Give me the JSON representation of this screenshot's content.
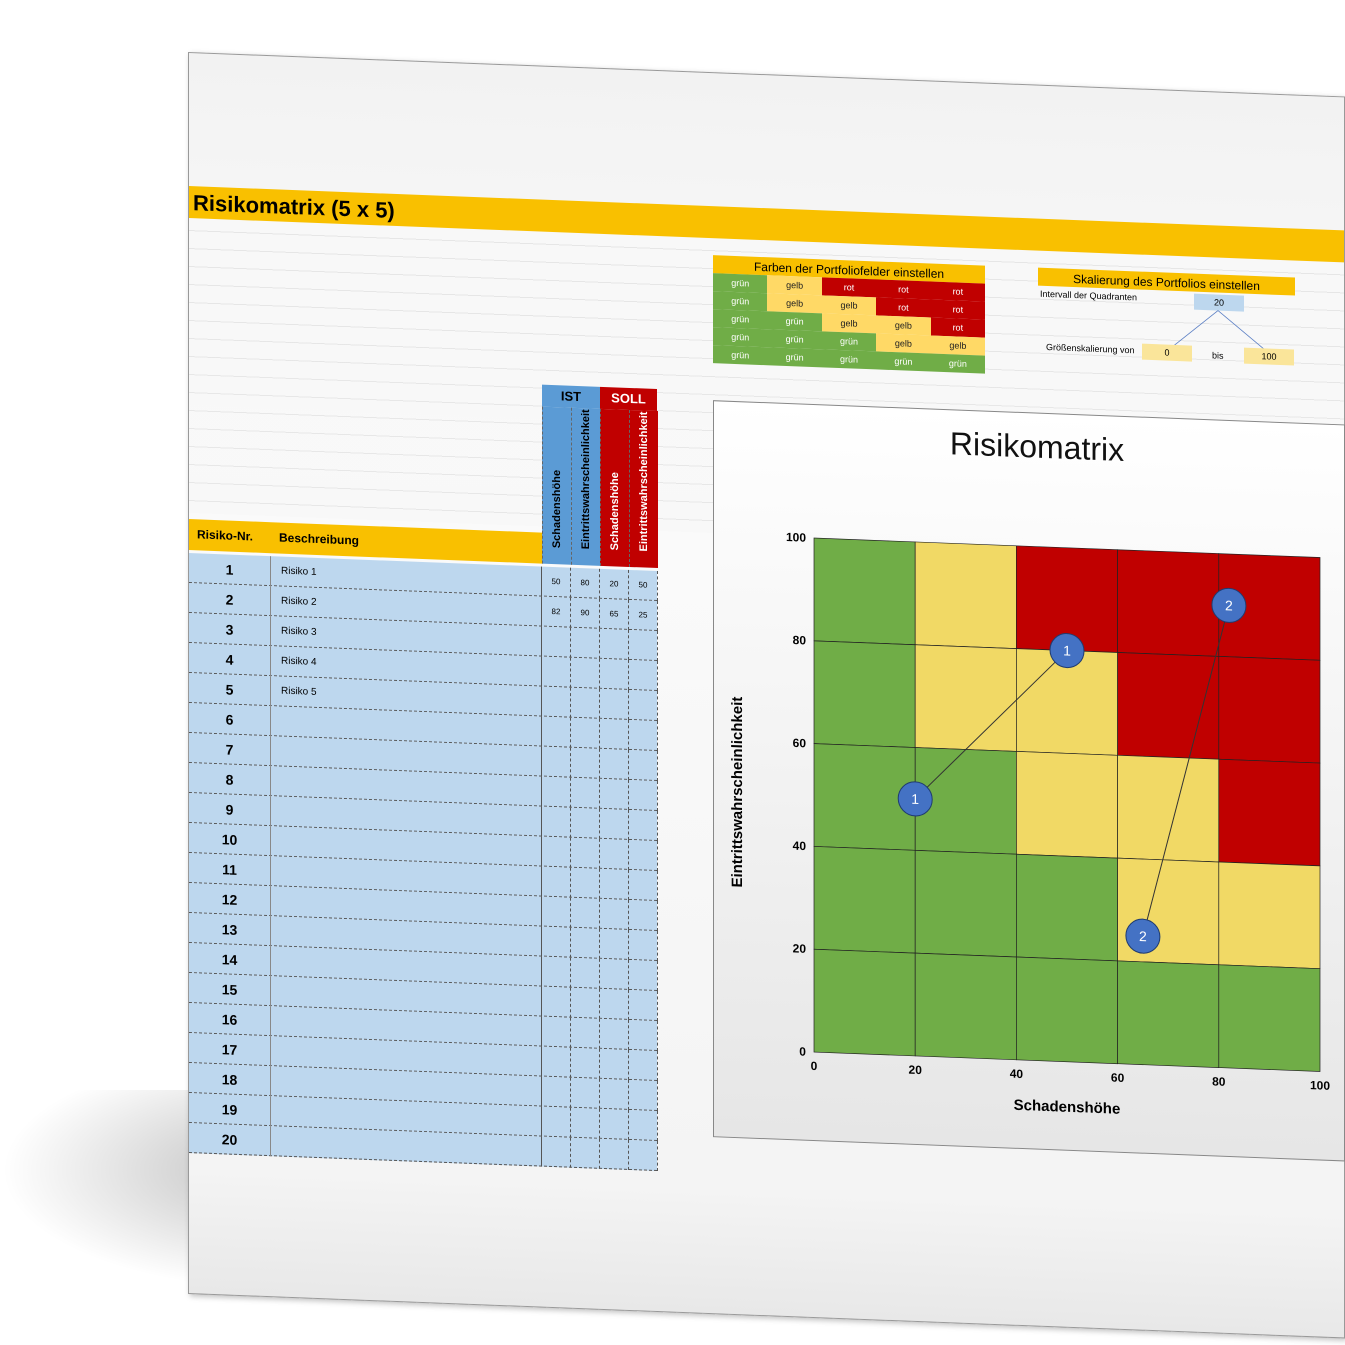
{
  "title": "Risikomatrix (5 x 5)",
  "color_table": {
    "title": "Farben der Portfoliofelder einstellen",
    "rows": [
      [
        "grün",
        "gelb",
        "rot",
        "rot",
        "rot"
      ],
      [
        "grün",
        "gelb",
        "gelb",
        "rot",
        "rot"
      ],
      [
        "grün",
        "grün",
        "gelb",
        "gelb",
        "rot"
      ],
      [
        "grün",
        "grün",
        "grün",
        "gelb",
        "gelb"
      ],
      [
        "grün",
        "grün",
        "grün",
        "grün",
        "grün"
      ]
    ]
  },
  "scale_table": {
    "title": "Skalierung des Portfolios einstellen",
    "interval_label": "Intervall der Quadranten",
    "interval": "20",
    "size_label": "Größenskalierung von",
    "from": "0",
    "bis": "bis",
    "to": "100"
  },
  "table": {
    "headers": {
      "nr": "Risiko-Nr.",
      "desc": "Beschreibung",
      "ist": "IST",
      "soll": "SOLL",
      "schaden": "Schadenshöhe",
      "wahr": "Eintrittswahrscheinlichkeit"
    },
    "rows": [
      {
        "nr": "1",
        "desc": "Risiko 1",
        "ist_s": "50",
        "ist_w": "80",
        "soll_s": "20",
        "soll_w": "50"
      },
      {
        "nr": "2",
        "desc": "Risiko 2",
        "ist_s": "82",
        "ist_w": "90",
        "soll_s": "65",
        "soll_w": "25"
      },
      {
        "nr": "3",
        "desc": "Risiko 3"
      },
      {
        "nr": "4",
        "desc": "Risiko 4"
      },
      {
        "nr": "5",
        "desc": "Risiko 5"
      },
      {
        "nr": "6"
      },
      {
        "nr": "7"
      },
      {
        "nr": "8"
      },
      {
        "nr": "9"
      },
      {
        "nr": "10"
      },
      {
        "nr": "11"
      },
      {
        "nr": "12"
      },
      {
        "nr": "13"
      },
      {
        "nr": "14"
      },
      {
        "nr": "15"
      },
      {
        "nr": "16"
      },
      {
        "nr": "17"
      },
      {
        "nr": "18"
      },
      {
        "nr": "19"
      },
      {
        "nr": "20"
      }
    ]
  },
  "colors": {
    "grün": "#70ad47",
    "gelb": "#f1d965",
    "rot": "#c00000",
    "ist": "#5b9bd5",
    "soll": "#c00000",
    "title": "#f9c000",
    "row": "#bdd7ee",
    "point": "#4472c4"
  },
  "chart_data": {
    "type": "scatter",
    "title": "Risikomatrix",
    "xlabel": "Schadenshöhe",
    "ylabel": "Eintrittswahrscheinlichkeit",
    "xlim": [
      0,
      100
    ],
    "ylim": [
      0,
      100
    ],
    "xticks": [
      "0",
      "20",
      "40",
      "60",
      "80",
      "100"
    ],
    "yticks": [
      "0",
      "20",
      "40",
      "60",
      "80",
      "100"
    ],
    "grid": true,
    "points": [
      {
        "label": "1",
        "ist": [
          50,
          80
        ],
        "soll": [
          20,
          50
        ]
      },
      {
        "label": "2",
        "ist": [
          82,
          90
        ],
        "soll": [
          65,
          25
        ]
      }
    ]
  }
}
